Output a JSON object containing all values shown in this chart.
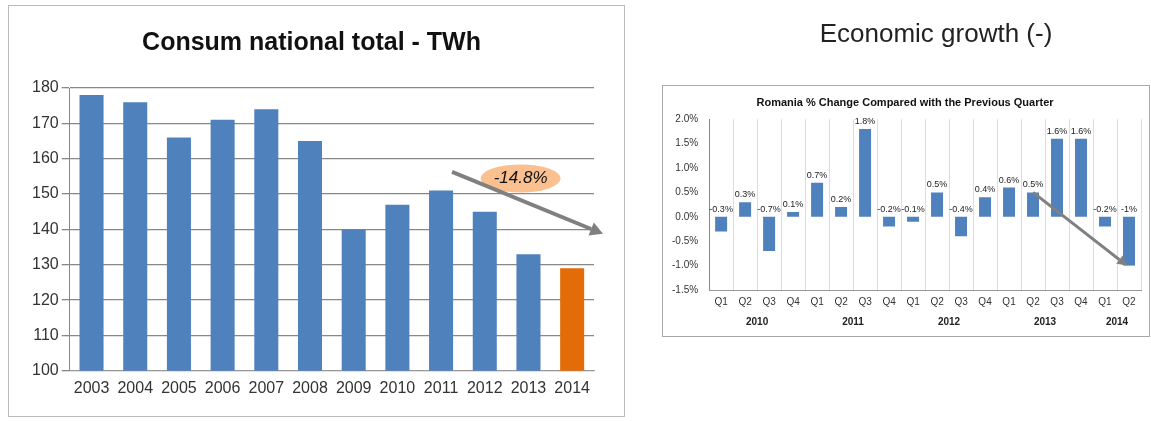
{
  "chart_data": [
    {
      "type": "bar",
      "title": "Consum national total - TWh",
      "categories": [
        "2003",
        "2004",
        "2005",
        "2006",
        "2007",
        "2008",
        "2009",
        "2010",
        "2011",
        "2012",
        "2013",
        "2014"
      ],
      "values": [
        178,
        176,
        166,
        171,
        174,
        165,
        140,
        147,
        151,
        145,
        133,
        129
      ],
      "colors": [
        "#4f81bd",
        "#4f81bd",
        "#4f81bd",
        "#4f81bd",
        "#4f81bd",
        "#4f81bd",
        "#4f81bd",
        "#4f81bd",
        "#4f81bd",
        "#4f81bd",
        "#4f81bd",
        "#e36c09"
      ],
      "ylim": [
        100,
        180
      ],
      "yticks": [
        100,
        110,
        120,
        130,
        140,
        150,
        160,
        170,
        180
      ],
      "grid": "y",
      "annotations": [
        "-14.8%"
      ]
    },
    {
      "type": "bar",
      "title": "Economic growth (-)",
      "subtitle": "Romania % Change Compared with the Previous Quarter",
      "categories": [
        "Q1",
        "Q2",
        "Q3",
        "Q4",
        "Q1",
        "Q2",
        "Q3",
        "Q4",
        "Q1",
        "Q2",
        "Q3",
        "Q4",
        "Q1",
        "Q2",
        "Q3",
        "Q4",
        "Q1",
        "Q2"
      ],
      "values": [
        -0.3,
        0.3,
        -0.7,
        0.1,
        0.7,
        0.2,
        1.8,
        -0.2,
        -0.1,
        0.5,
        -0.4,
        0.4,
        0.6,
        0.5,
        1.6,
        1.6,
        -0.2,
        -1
      ],
      "value_labels": [
        "-0.3%",
        "0.3%",
        "-0.7%",
        "0.1%",
        "0.7%",
        "0.2%",
        "1.8%",
        "-0.2%",
        "-0.1%",
        "0.5%",
        "-0.4%",
        "0.4%",
        "0.6%",
        "0.5%",
        "1.6%",
        "1.6%",
        "-0.2%",
        "-1%"
      ],
      "color": "#4f81bd",
      "ylim": [
        -1.5,
        2.0
      ],
      "yticks": [
        {
          "value": -1.5,
          "label": "-1.5%"
        },
        {
          "value": -1.0,
          "label": "-1.0%"
        },
        {
          "value": -0.5,
          "label": "-0.5%"
        },
        {
          "value": 0,
          "label": "0.0%"
        },
        {
          "value": 0.5,
          "label": "0.5%"
        },
        {
          "value": 1.0,
          "label": "1.0%"
        },
        {
          "value": 1.5,
          "label": "1.5%"
        },
        {
          "value": 2.0,
          "label": "2.0%"
        }
      ],
      "grid": "x",
      "annotations": [
        "2010",
        "2011",
        "2012",
        "2013",
        "2014"
      ]
    }
  ]
}
